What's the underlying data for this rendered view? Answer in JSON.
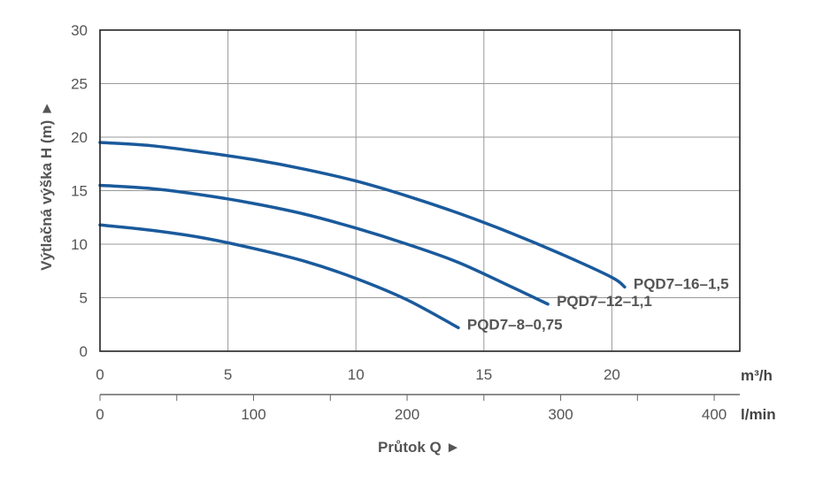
{
  "chart_data": {
    "type": "line",
    "ylabel": "Výtlačná výška H (m) ►",
    "xlabel": "Průtok Q ►",
    "x_unit": "m³/h",
    "x2_unit": "l/min",
    "xlim": [
      0,
      25
    ],
    "ylim": [
      0,
      30
    ],
    "x2lim": [
      0,
      416.67
    ],
    "x_ticks": [
      0,
      5,
      10,
      15,
      20
    ],
    "y_ticks": [
      0,
      5,
      10,
      15,
      20,
      25,
      30
    ],
    "x2_ticks": [
      0,
      100,
      200,
      300,
      400
    ],
    "grid": true,
    "legend": "labels at line ends",
    "series": [
      {
        "name": "PQD7–16–1,5",
        "x": [
          0,
          2,
          4,
          6,
          8,
          10,
          12,
          14,
          16,
          18,
          20,
          20.5
        ],
        "y": [
          19.5,
          19.2,
          18.6,
          17.9,
          17.0,
          15.9,
          14.5,
          12.9,
          11.1,
          9.1,
          6.9,
          6.0
        ]
      },
      {
        "name": "PQD7–12–1,1",
        "x": [
          0,
          2,
          4,
          6,
          8,
          10,
          12,
          14,
          16,
          17.5
        ],
        "y": [
          15.5,
          15.2,
          14.6,
          13.8,
          12.8,
          11.5,
          10.0,
          8.3,
          6.1,
          4.4
        ]
      },
      {
        "name": "PQD7–8–0,75",
        "x": [
          0,
          2,
          4,
          6,
          8,
          10,
          12,
          14
        ],
        "y": [
          11.8,
          11.3,
          10.6,
          9.6,
          8.4,
          6.8,
          4.8,
          2.2
        ]
      }
    ],
    "series_label_text": [
      "PQD7–16–1,5",
      "PQD7–12–1,1",
      "PQD7–8–0,75"
    ],
    "colors": {
      "line": "#1a5a9c",
      "grid": "#999999",
      "frame": "#222222",
      "text": "#555555"
    }
  }
}
